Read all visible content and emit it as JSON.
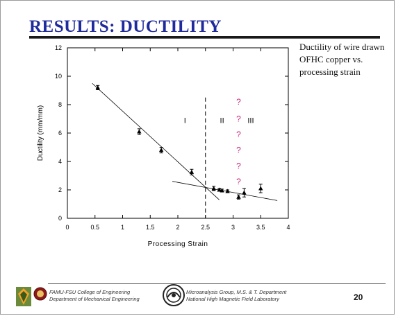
{
  "slide": {
    "title": "RESULTS: DUCTILITY",
    "caption": "Ductility of wire drawn OFHC copper vs. processing strain",
    "page_number": "20"
  },
  "footer": {
    "left_line1": "FAMU-FSU College of Engineering",
    "left_line2": "Department of Mechanical Engineering",
    "right_line1": "Microanalysis Group, M.S. & T. Department",
    "right_line2": "National High Magnetic Field Laboratory"
  },
  "chart_data": {
    "type": "scatter",
    "xlabel": "Processing Strain",
    "ylabel": "Ductility (mm/mm)",
    "xlim": [
      0,
      4
    ],
    "ylim": [
      0,
      12
    ],
    "xticks": [
      0,
      0.5,
      1,
      1.5,
      2,
      2.5,
      3,
      3.5,
      4
    ],
    "yticks": [
      0,
      2,
      4,
      6,
      8,
      10,
      12
    ],
    "grid": false,
    "points": [
      {
        "x": 0.55,
        "y": 9.2,
        "err": 0.15
      },
      {
        "x": 1.3,
        "y": 6.1,
        "err": 0.2
      },
      {
        "x": 1.7,
        "y": 4.8,
        "err": 0.2
      },
      {
        "x": 2.25,
        "y": 3.25,
        "err": 0.2
      },
      {
        "x": 2.65,
        "y": 2.1,
        "err": 0.15
      },
      {
        "x": 2.75,
        "y": 2.0,
        "err": 0.1
      },
      {
        "x": 2.8,
        "y": 1.95,
        "err": 0.1
      },
      {
        "x": 2.9,
        "y": 1.9,
        "err": 0.1
      },
      {
        "x": 3.1,
        "y": 1.5,
        "err": 0.15
      },
      {
        "x": 3.2,
        "y": 1.8,
        "err": 0.3
      },
      {
        "x": 3.5,
        "y": 2.1,
        "err": 0.3
      }
    ],
    "fit_lines": [
      {
        "x1": 0.45,
        "y1": 9.5,
        "x2": 2.75,
        "y2": 1.3
      },
      {
        "x1": 1.9,
        "y1": 2.6,
        "x2": 3.8,
        "y2": 1.25
      }
    ],
    "boundary_x": 2.5,
    "region_labels": [
      {
        "text": "I",
        "x": 2.13,
        "y": 6.7
      },
      {
        "text": "II",
        "x": 2.8,
        "y": 6.7
      },
      {
        "text": "III",
        "x": 3.32,
        "y": 6.7
      }
    ],
    "question_marks": {
      "text": "?",
      "color": "#c8257a",
      "x": 3.1,
      "y": [
        8,
        6.8,
        5.7,
        4.6,
        3.5,
        2.4
      ]
    }
  }
}
